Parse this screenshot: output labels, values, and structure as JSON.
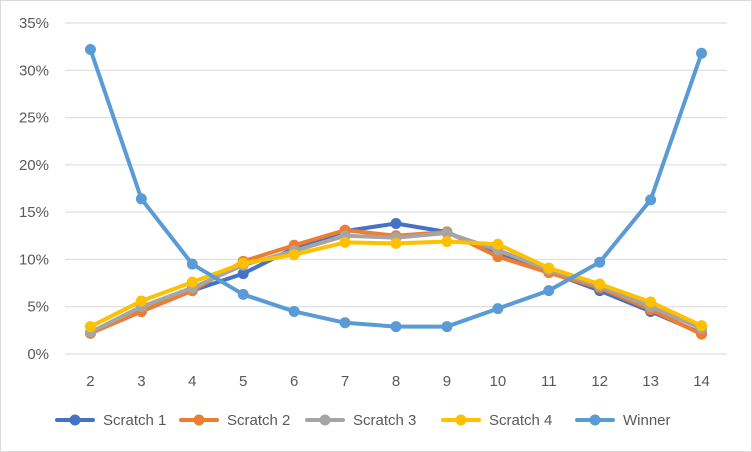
{
  "chart_data": {
    "type": "line",
    "title": "",
    "xlabel": "",
    "ylabel": "",
    "categories": [
      "2",
      "3",
      "4",
      "5",
      "6",
      "7",
      "8",
      "9",
      "10",
      "11",
      "12",
      "13",
      "14"
    ],
    "y_tick_labels": [
      "0%",
      "5%",
      "10%",
      "15%",
      "20%",
      "25%",
      "30%",
      "35%"
    ],
    "ylim": [
      0,
      35
    ],
    "grid": true,
    "legend_position": "bottom",
    "series": [
      {
        "name": "Scratch 1",
        "color": "#4472c4",
        "values": [
          2.2,
          4.5,
          6.7,
          8.5,
          11.2,
          13.0,
          13.8,
          12.9,
          10.5,
          8.7,
          6.7,
          4.5,
          2.2
        ]
      },
      {
        "name": "Scratch 2",
        "color": "#ed7d31",
        "values": [
          2.2,
          4.5,
          6.7,
          9.8,
          11.5,
          13.1,
          12.5,
          12.9,
          10.3,
          8.6,
          7.0,
          4.7,
          2.1
        ]
      },
      {
        "name": "Scratch 3",
        "color": "#a5a5a5",
        "values": [
          2.3,
          5.0,
          7.0,
          9.4,
          10.9,
          12.5,
          12.3,
          12.8,
          11.0,
          8.9,
          7.2,
          5.0,
          2.7
        ]
      },
      {
        "name": "Scratch 4",
        "color": "#ffc000",
        "values": [
          2.9,
          5.6,
          7.6,
          9.6,
          10.5,
          11.8,
          11.7,
          11.9,
          11.6,
          9.1,
          7.4,
          5.5,
          3.0
        ]
      },
      {
        "name": "Winner",
        "color": "#5b9bd5",
        "values": [
          32.2,
          16.4,
          9.5,
          6.3,
          4.5,
          3.3,
          2.9,
          2.9,
          4.8,
          6.7,
          9.7,
          16.3,
          31.8
        ]
      }
    ]
  }
}
